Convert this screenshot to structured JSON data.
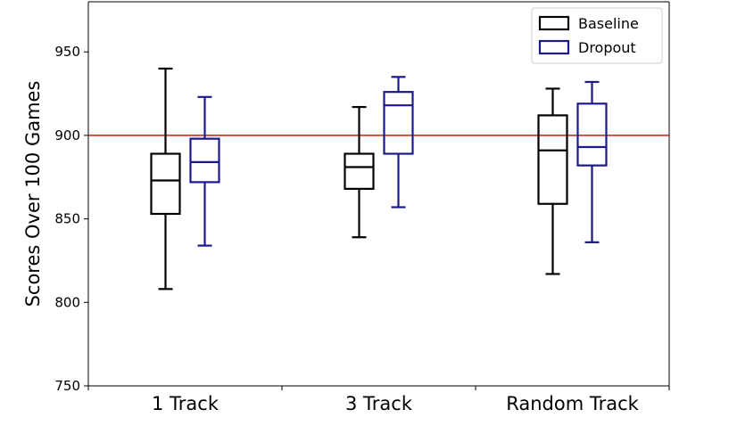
{
  "chart_data": {
    "type": "box",
    "title": "",
    "xlabel": "",
    "ylabel": "Scores Over 100 Games",
    "ylim": [
      750,
      980
    ],
    "yticks": [
      750,
      800,
      850,
      900,
      950
    ],
    "categories": [
      "1 Track",
      "3 Track",
      "Random Track"
    ],
    "reference_line": {
      "y": 900,
      "color": "#e01010"
    },
    "legend": {
      "placement": "top-right"
    },
    "series": [
      {
        "name": "Baseline",
        "color": "#000000",
        "boxes": [
          {
            "whisker_low": 808,
            "q1": 853,
            "median": 873,
            "q3": 889,
            "whisker_high": 940
          },
          {
            "whisker_low": 839,
            "q1": 868,
            "median": 881,
            "q3": 889,
            "whisker_high": 917
          },
          {
            "whisker_low": 817,
            "q1": 859,
            "median": 891,
            "q3": 912,
            "whisker_high": 928
          }
        ]
      },
      {
        "name": "Dropout",
        "color": "#1a1a8c",
        "boxes": [
          {
            "whisker_low": 834,
            "q1": 872,
            "median": 884,
            "q3": 898,
            "whisker_high": 923
          },
          {
            "whisker_low": 857,
            "q1": 889,
            "median": 918,
            "q3": 926,
            "whisker_high": 935
          },
          {
            "whisker_low": 836,
            "q1": 882,
            "median": 893,
            "q3": 919,
            "whisker_high": 932
          }
        ]
      }
    ]
  }
}
